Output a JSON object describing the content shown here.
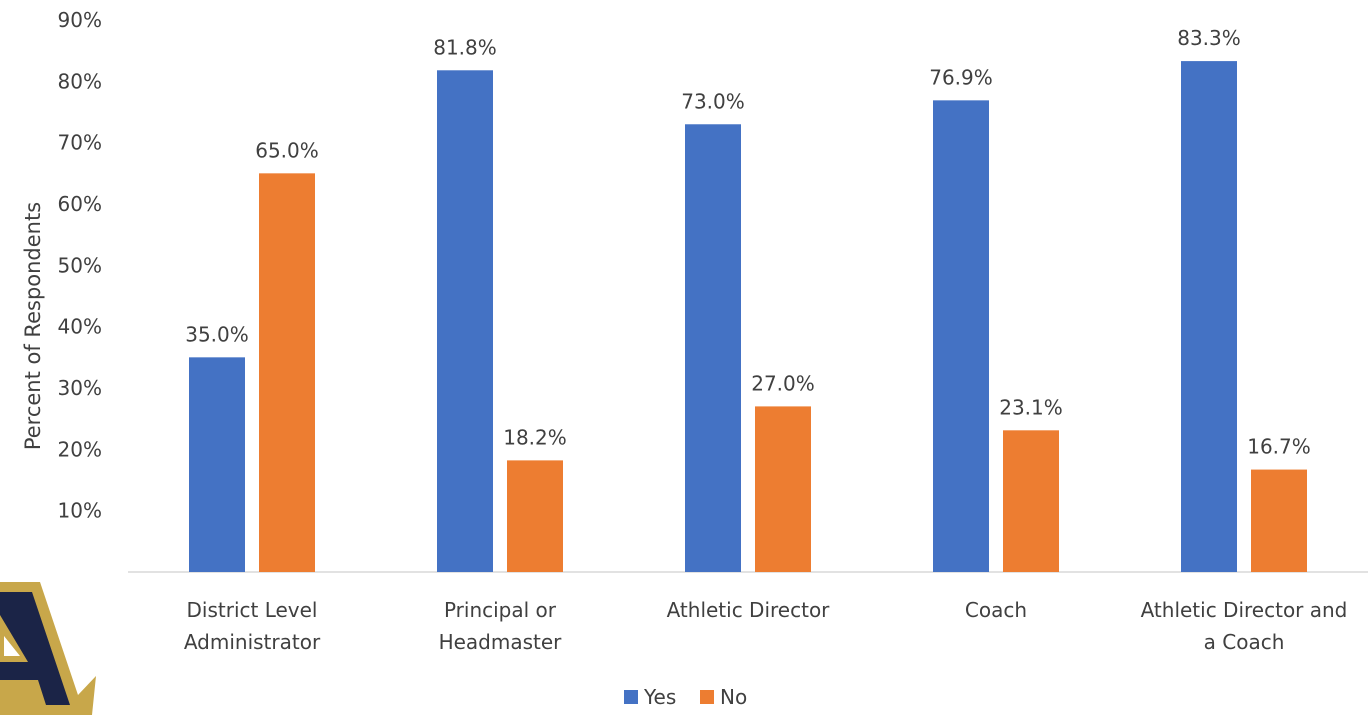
{
  "chart_data": {
    "type": "bar",
    "title": "",
    "ylabel": "Percent of Respondents",
    "xlabel": "",
    "ylim": [
      0,
      90
    ],
    "yticks": [
      10,
      20,
      30,
      40,
      50,
      60,
      70,
      80,
      90
    ],
    "ytick_labels": [
      "10%",
      "20%",
      "30%",
      "40%",
      "50%",
      "60%",
      "70%",
      "80%",
      "90%"
    ],
    "categories": [
      [
        "District Level",
        "Administrator"
      ],
      [
        "Principal or",
        "Headmaster"
      ],
      [
        "Athletic Director"
      ],
      [
        "Coach"
      ],
      [
        "Athletic Director and",
        "a Coach"
      ]
    ],
    "series": [
      {
        "name": "Yes",
        "color": "#4472C4",
        "values": [
          35.0,
          81.8,
          73.0,
          76.9,
          83.3
        ],
        "labels": [
          "35.0%",
          "81.8%",
          "73.0%",
          "76.9%",
          "83.3%"
        ]
      },
      {
        "name": "No",
        "color": "#ED7D31",
        "values": [
          65.0,
          18.2,
          27.0,
          23.1,
          16.7
        ],
        "labels": [
          "65.0%",
          "18.2%",
          "27.0%",
          "23.1%",
          "16.7%"
        ]
      }
    ],
    "legend": "bottom-center",
    "grid": false
  },
  "logo": {
    "letter": "A",
    "icon": "letter-a-logo-icon",
    "colors": {
      "navy": "#1b2447",
      "gold": "#c8a74a"
    }
  }
}
